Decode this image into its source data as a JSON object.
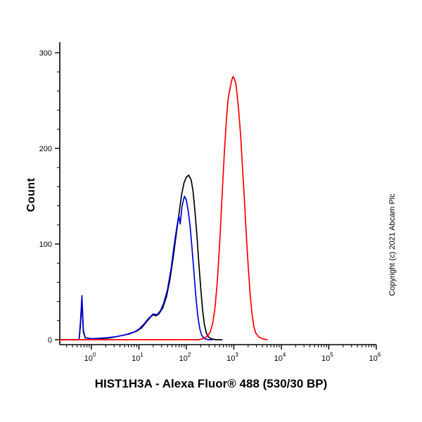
{
  "figure": {
    "background": "#ffffff",
    "copyright": "Copyright (c) 2021 Abcam Plc"
  },
  "chart_data": {
    "type": "line",
    "subtype": "flow-cytometry-histogram",
    "title": "",
    "xlabel": "HIST1H3A - Alexa Fluor® 488 (530/30 BP)",
    "ylabel": "Count",
    "x_scale": "log10",
    "x_axis_left_log": -0.67,
    "x_major_tick_exponents": [
      0,
      1,
      2,
      3,
      4,
      5,
      6
    ],
    "ylim": [
      0,
      300
    ],
    "y_major_ticks": [
      0,
      100,
      200,
      300
    ],
    "y_minor_step": 20,
    "grid": false,
    "legend": "none",
    "axis_color": "#000000",
    "series": [
      {
        "name": "black",
        "color": "#000000",
        "peak_count": 172,
        "peak_log_x": 2.05,
        "points": [
          [
            -0.67,
            0
          ],
          [
            -0.26,
            0
          ],
          [
            -0.23,
            16
          ],
          [
            -0.2,
            40
          ],
          [
            -0.17,
            8
          ],
          [
            -0.13,
            2
          ],
          [
            0.0,
            1
          ],
          [
            0.2,
            1
          ],
          [
            0.4,
            2
          ],
          [
            0.6,
            4
          ],
          [
            0.8,
            6
          ],
          [
            0.95,
            9
          ],
          [
            1.05,
            12
          ],
          [
            1.15,
            18
          ],
          [
            1.25,
            24
          ],
          [
            1.3,
            26
          ],
          [
            1.36,
            25
          ],
          [
            1.42,
            27
          ],
          [
            1.5,
            33
          ],
          [
            1.58,
            45
          ],
          [
            1.65,
            62
          ],
          [
            1.72,
            85
          ],
          [
            1.78,
            108
          ],
          [
            1.84,
            130
          ],
          [
            1.9,
            152
          ],
          [
            1.95,
            164
          ],
          [
            2.0,
            170
          ],
          [
            2.05,
            172
          ],
          [
            2.1,
            167
          ],
          [
            2.14,
            155
          ],
          [
            2.18,
            135
          ],
          [
            2.22,
            110
          ],
          [
            2.26,
            82
          ],
          [
            2.3,
            55
          ],
          [
            2.34,
            32
          ],
          [
            2.38,
            16
          ],
          [
            2.42,
            7
          ],
          [
            2.46,
            3
          ],
          [
            2.52,
            1
          ],
          [
            2.62,
            0
          ],
          [
            2.75,
            0
          ]
        ]
      },
      {
        "name": "blue",
        "color": "#0000dd",
        "peak_count": 150,
        "peak_log_x": 1.96,
        "points": [
          [
            -0.67,
            0
          ],
          [
            -0.26,
            0
          ],
          [
            -0.23,
            20
          ],
          [
            -0.2,
            46
          ],
          [
            -0.17,
            10
          ],
          [
            -0.13,
            2
          ],
          [
            0.0,
            1
          ],
          [
            0.3,
            2
          ],
          [
            0.5,
            3
          ],
          [
            0.7,
            5
          ],
          [
            0.9,
            8
          ],
          [
            1.0,
            11
          ],
          [
            1.1,
            16
          ],
          [
            1.2,
            22
          ],
          [
            1.3,
            27
          ],
          [
            1.38,
            26
          ],
          [
            1.45,
            30
          ],
          [
            1.52,
            38
          ],
          [
            1.6,
            52
          ],
          [
            1.68,
            75
          ],
          [
            1.74,
            98
          ],
          [
            1.8,
            118
          ],
          [
            1.84,
            130
          ],
          [
            1.87,
            121
          ],
          [
            1.91,
            140
          ],
          [
            1.96,
            150
          ],
          [
            2.0,
            146
          ],
          [
            2.04,
            134
          ],
          [
            2.08,
            118
          ],
          [
            2.12,
            95
          ],
          [
            2.16,
            70
          ],
          [
            2.2,
            45
          ],
          [
            2.24,
            25
          ],
          [
            2.28,
            12
          ],
          [
            2.32,
            5
          ],
          [
            2.38,
            1
          ],
          [
            2.46,
            0
          ],
          [
            2.55,
            0
          ]
        ]
      },
      {
        "name": "red",
        "color": "#ff0000",
        "peak_count": 275,
        "peak_log_x": 2.98,
        "points": [
          [
            -0.67,
            0
          ],
          [
            2.25,
            0
          ],
          [
            2.35,
            1
          ],
          [
            2.45,
            4
          ],
          [
            2.5,
            8
          ],
          [
            2.55,
            16
          ],
          [
            2.6,
            32
          ],
          [
            2.65,
            60
          ],
          [
            2.7,
            100
          ],
          [
            2.75,
            148
          ],
          [
            2.8,
            196
          ],
          [
            2.85,
            235
          ],
          [
            2.88,
            252
          ],
          [
            2.92,
            263
          ],
          [
            2.95,
            270
          ],
          [
            2.98,
            275
          ],
          [
            3.01,
            273
          ],
          [
            3.04,
            268
          ],
          [
            3.07,
            256
          ],
          [
            3.1,
            240
          ],
          [
            3.14,
            215
          ],
          [
            3.18,
            182
          ],
          [
            3.22,
            148
          ],
          [
            3.26,
            112
          ],
          [
            3.3,
            78
          ],
          [
            3.34,
            50
          ],
          [
            3.38,
            28
          ],
          [
            3.42,
            14
          ],
          [
            3.46,
            7
          ],
          [
            3.52,
            3
          ],
          [
            3.6,
            1
          ],
          [
            3.7,
            0
          ]
        ]
      }
    ]
  }
}
